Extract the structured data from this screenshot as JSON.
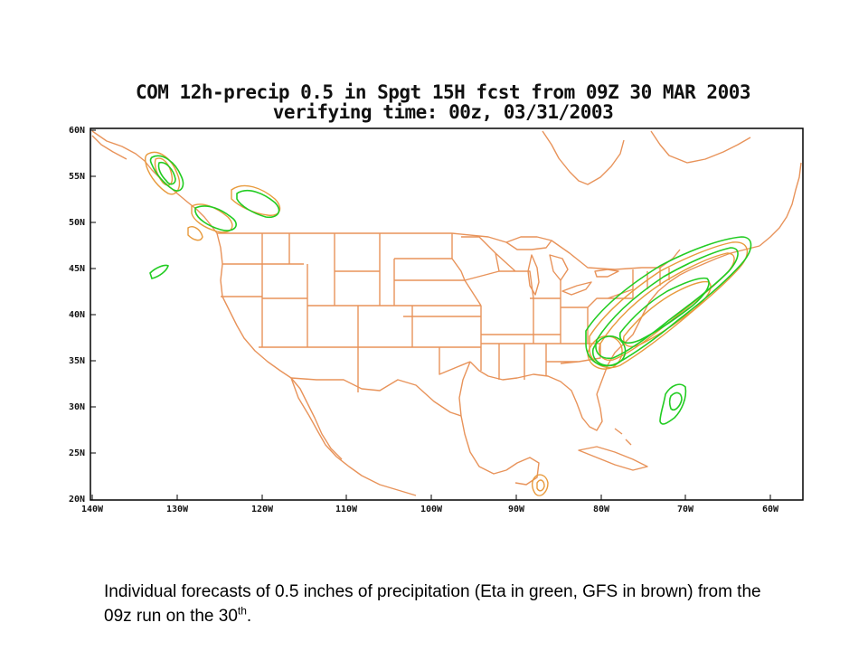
{
  "title": {
    "line1": "COM 12h-precip 0.5 in Spgt 15H fcst from 09Z 30 MAR 2003",
    "line2": "verifying time: 00z, 03/31/2003"
  },
  "axes": {
    "lat_labels": [
      "60N",
      "55N",
      "50N",
      "45N",
      "40N",
      "35N",
      "30N",
      "25N",
      "20N"
    ],
    "lon_labels": [
      "140W",
      "130W",
      "120W",
      "110W",
      "100W",
      "90W",
      "80W",
      "70W",
      "60W"
    ]
  },
  "caption": {
    "text_before": "Individual forecasts of 0.5 inches of precipitation (Eta in green, GFS in brown) from the 09z run on the 30",
    "superscript": "th",
    "text_after": "."
  },
  "colors": {
    "eta": "#22cc22",
    "gfs": "#e89a3c",
    "boundaries": "#e8935a",
    "frame": "#000000"
  }
}
